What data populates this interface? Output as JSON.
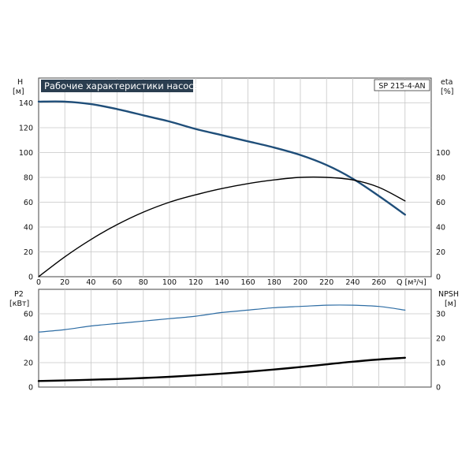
{
  "chart_data": [
    {
      "type": "line",
      "title": "Рабочие характеристики насоса",
      "model_label": "SP 215-4-AN",
      "left_axis": {
        "label": "H",
        "unit": "[м]",
        "ticks": [
          0,
          20,
          40,
          60,
          80,
          100,
          120,
          140
        ],
        "ylim": [
          0,
          160
        ]
      },
      "right_axis": {
        "label": "eta",
        "unit": "[%]",
        "ticks": [
          0,
          20,
          40,
          60,
          80,
          100
        ],
        "ylim": [
          0,
          160
        ]
      },
      "x_axis": {
        "label": "Q [м³/ч]",
        "ticks": [
          0,
          20,
          40,
          60,
          80,
          100,
          120,
          140,
          160,
          180,
          200,
          220,
          240,
          260
        ],
        "xlim": [
          0,
          300
        ]
      },
      "grid": true,
      "series": [
        {
          "id": "head",
          "axis": "left",
          "color": "#1f4e79",
          "x": [
            0,
            20,
            40,
            60,
            80,
            100,
            120,
            140,
            160,
            180,
            200,
            220,
            240,
            260,
            280
          ],
          "y": [
            141,
            141,
            139,
            135,
            130,
            125,
            119,
            114,
            109,
            104,
            98,
            90,
            79,
            65,
            50
          ]
        },
        {
          "id": "efficiency",
          "axis": "right",
          "color": "#000000",
          "x": [
            0,
            20,
            40,
            60,
            80,
            100,
            120,
            140,
            160,
            180,
            200,
            220,
            240,
            260,
            280
          ],
          "y": [
            0,
            16,
            30,
            42,
            52,
            60,
            66,
            71,
            75,
            78,
            80,
            80,
            78,
            72,
            61
          ]
        }
      ]
    },
    {
      "type": "line",
      "left_axis": {
        "label": "P2",
        "unit": "[кВт]",
        "ticks": [
          0,
          20,
          40,
          60
        ],
        "ylim": [
          0,
          80
        ]
      },
      "right_axis": {
        "label": "NPSH",
        "unit": "[м]",
        "ticks": [
          0,
          10,
          20,
          30
        ],
        "ylim": [
          0,
          40
        ]
      },
      "x_axis": {
        "xlim": [
          0,
          300
        ]
      },
      "grid": true,
      "series": [
        {
          "id": "power",
          "axis": "left",
          "color": "#2e6da4",
          "x": [
            0,
            20,
            40,
            60,
            80,
            100,
            120,
            140,
            160,
            180,
            200,
            220,
            240,
            260,
            280
          ],
          "y": [
            45,
            47,
            50,
            52,
            54,
            56,
            58,
            61,
            63,
            65,
            66,
            67,
            67,
            66,
            63
          ]
        },
        {
          "id": "npsh",
          "axis": "right",
          "color": "#000000",
          "x": [
            0,
            20,
            40,
            60,
            80,
            100,
            120,
            140,
            160,
            180,
            200,
            220,
            240,
            260,
            280
          ],
          "y": [
            2.5,
            2.7,
            3.0,
            3.3,
            3.7,
            4.2,
            4.8,
            5.5,
            6.3,
            7.2,
            8.2,
            9.3,
            10.4,
            11.3,
            12
          ]
        }
      ]
    }
  ]
}
